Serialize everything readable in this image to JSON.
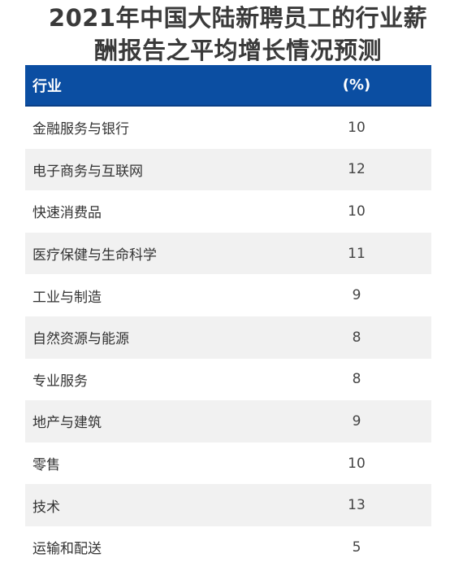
{
  "title": {
    "line1": "2021年中国大陆新聘员工的行业薪",
    "line2": "酬报告之平均增长情况预测"
  },
  "colors": {
    "header_bg": "#0b4ea2",
    "header_text": "#ffffff",
    "row_alt": "#f1f1f1"
  },
  "chart_data": {
    "type": "table",
    "title": "2021年中国大陆新聘员工的行业薪酬报告之平均增长情况预测",
    "columns": [
      "行业",
      "(%)"
    ],
    "rows": [
      {
        "industry": "金融服务与银行",
        "value": 10
      },
      {
        "industry": "电子商务与互联网",
        "value": 12
      },
      {
        "industry": "快速消费品",
        "value": 10
      },
      {
        "industry": "医疗保健与生命科学",
        "value": 11
      },
      {
        "industry": "工业与制造",
        "value": 9
      },
      {
        "industry": "自然资源与能源",
        "value": 8
      },
      {
        "industry": "专业服务",
        "value": 8
      },
      {
        "industry": "地产与建筑",
        "value": 9
      },
      {
        "industry": "零售",
        "value": 10
      },
      {
        "industry": "技术",
        "value": 13
      },
      {
        "industry": "运输和配送",
        "value": 5
      }
    ]
  }
}
